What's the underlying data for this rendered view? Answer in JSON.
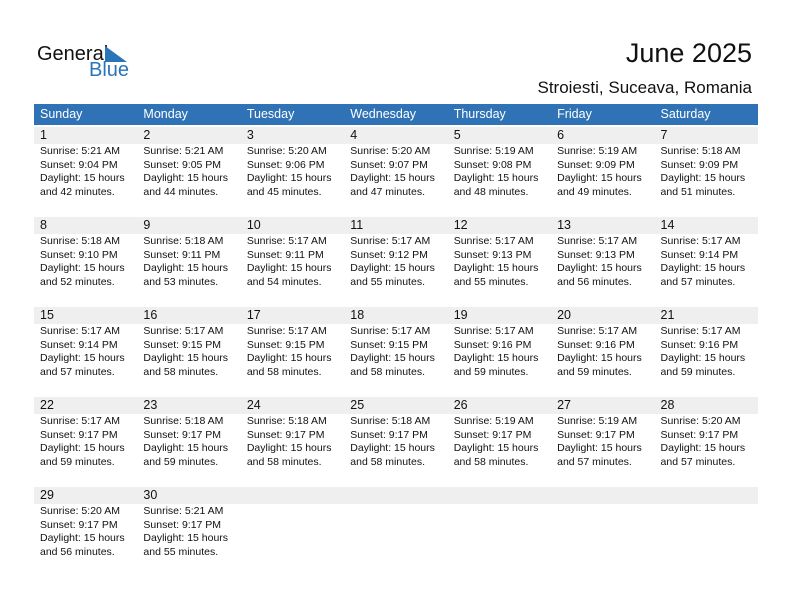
{
  "logo": {
    "general": "General",
    "blue": "Blue",
    "accent": "#2a75b8"
  },
  "title": "June 2025",
  "location": "Stroiesti, Suceava, Romania",
  "colors": {
    "header_bg": "#2f72b5",
    "date_bg": "#efefef"
  },
  "weekdays": [
    "Sunday",
    "Monday",
    "Tuesday",
    "Wednesday",
    "Thursday",
    "Friday",
    "Saturday"
  ],
  "days": [
    {
      "day": "1",
      "sunrise": "Sunrise: 5:21 AM",
      "sunset": "Sunset: 9:04 PM",
      "daylight": "Daylight: 15 hours",
      "minutes": "and 42 minutes."
    },
    {
      "day": "2",
      "sunrise": "Sunrise: 5:21 AM",
      "sunset": "Sunset: 9:05 PM",
      "daylight": "Daylight: 15 hours",
      "minutes": "and 44 minutes."
    },
    {
      "day": "3",
      "sunrise": "Sunrise: 5:20 AM",
      "sunset": "Sunset: 9:06 PM",
      "daylight": "Daylight: 15 hours",
      "minutes": "and 45 minutes."
    },
    {
      "day": "4",
      "sunrise": "Sunrise: 5:20 AM",
      "sunset": "Sunset: 9:07 PM",
      "daylight": "Daylight: 15 hours",
      "minutes": "and 47 minutes."
    },
    {
      "day": "5",
      "sunrise": "Sunrise: 5:19 AM",
      "sunset": "Sunset: 9:08 PM",
      "daylight": "Daylight: 15 hours",
      "minutes": "and 48 minutes."
    },
    {
      "day": "6",
      "sunrise": "Sunrise: 5:19 AM",
      "sunset": "Sunset: 9:09 PM",
      "daylight": "Daylight: 15 hours",
      "minutes": "and 49 minutes."
    },
    {
      "day": "7",
      "sunrise": "Sunrise: 5:18 AM",
      "sunset": "Sunset: 9:09 PM",
      "daylight": "Daylight: 15 hours",
      "minutes": "and 51 minutes."
    },
    {
      "day": "8",
      "sunrise": "Sunrise: 5:18 AM",
      "sunset": "Sunset: 9:10 PM",
      "daylight": "Daylight: 15 hours",
      "minutes": "and 52 minutes."
    },
    {
      "day": "9",
      "sunrise": "Sunrise: 5:18 AM",
      "sunset": "Sunset: 9:11 PM",
      "daylight": "Daylight: 15 hours",
      "minutes": "and 53 minutes."
    },
    {
      "day": "10",
      "sunrise": "Sunrise: 5:17 AM",
      "sunset": "Sunset: 9:11 PM",
      "daylight": "Daylight: 15 hours",
      "minutes": "and 54 minutes."
    },
    {
      "day": "11",
      "sunrise": "Sunrise: 5:17 AM",
      "sunset": "Sunset: 9:12 PM",
      "daylight": "Daylight: 15 hours",
      "minutes": "and 55 minutes."
    },
    {
      "day": "12",
      "sunrise": "Sunrise: 5:17 AM",
      "sunset": "Sunset: 9:13 PM",
      "daylight": "Daylight: 15 hours",
      "minutes": "and 55 minutes."
    },
    {
      "day": "13",
      "sunrise": "Sunrise: 5:17 AM",
      "sunset": "Sunset: 9:13 PM",
      "daylight": "Daylight: 15 hours",
      "minutes": "and 56 minutes."
    },
    {
      "day": "14",
      "sunrise": "Sunrise: 5:17 AM",
      "sunset": "Sunset: 9:14 PM",
      "daylight": "Daylight: 15 hours",
      "minutes": "and 57 minutes."
    },
    {
      "day": "15",
      "sunrise": "Sunrise: 5:17 AM",
      "sunset": "Sunset: 9:14 PM",
      "daylight": "Daylight: 15 hours",
      "minutes": "and 57 minutes."
    },
    {
      "day": "16",
      "sunrise": "Sunrise: 5:17 AM",
      "sunset": "Sunset: 9:15 PM",
      "daylight": "Daylight: 15 hours",
      "minutes": "and 58 minutes."
    },
    {
      "day": "17",
      "sunrise": "Sunrise: 5:17 AM",
      "sunset": "Sunset: 9:15 PM",
      "daylight": "Daylight: 15 hours",
      "minutes": "and 58 minutes."
    },
    {
      "day": "18",
      "sunrise": "Sunrise: 5:17 AM",
      "sunset": "Sunset: 9:15 PM",
      "daylight": "Daylight: 15 hours",
      "minutes": "and 58 minutes."
    },
    {
      "day": "19",
      "sunrise": "Sunrise: 5:17 AM",
      "sunset": "Sunset: 9:16 PM",
      "daylight": "Daylight: 15 hours",
      "minutes": "and 59 minutes."
    },
    {
      "day": "20",
      "sunrise": "Sunrise: 5:17 AM",
      "sunset": "Sunset: 9:16 PM",
      "daylight": "Daylight: 15 hours",
      "minutes": "and 59 minutes."
    },
    {
      "day": "21",
      "sunrise": "Sunrise: 5:17 AM",
      "sunset": "Sunset: 9:16 PM",
      "daylight": "Daylight: 15 hours",
      "minutes": "and 59 minutes."
    },
    {
      "day": "22",
      "sunrise": "Sunrise: 5:17 AM",
      "sunset": "Sunset: 9:17 PM",
      "daylight": "Daylight: 15 hours",
      "minutes": "and 59 minutes."
    },
    {
      "day": "23",
      "sunrise": "Sunrise: 5:18 AM",
      "sunset": "Sunset: 9:17 PM",
      "daylight": "Daylight: 15 hours",
      "minutes": "and 59 minutes."
    },
    {
      "day": "24",
      "sunrise": "Sunrise: 5:18 AM",
      "sunset": "Sunset: 9:17 PM",
      "daylight": "Daylight: 15 hours",
      "minutes": "and 58 minutes."
    },
    {
      "day": "25",
      "sunrise": "Sunrise: 5:18 AM",
      "sunset": "Sunset: 9:17 PM",
      "daylight": "Daylight: 15 hours",
      "minutes": "and 58 minutes."
    },
    {
      "day": "26",
      "sunrise": "Sunrise: 5:19 AM",
      "sunset": "Sunset: 9:17 PM",
      "daylight": "Daylight: 15 hours",
      "minutes": "and 58 minutes."
    },
    {
      "day": "27",
      "sunrise": "Sunrise: 5:19 AM",
      "sunset": "Sunset: 9:17 PM",
      "daylight": "Daylight: 15 hours",
      "minutes": "and 57 minutes."
    },
    {
      "day": "28",
      "sunrise": "Sunrise: 5:20 AM",
      "sunset": "Sunset: 9:17 PM",
      "daylight": "Daylight: 15 hours",
      "minutes": "and 57 minutes."
    },
    {
      "day": "29",
      "sunrise": "Sunrise: 5:20 AM",
      "sunset": "Sunset: 9:17 PM",
      "daylight": "Daylight: 15 hours",
      "minutes": "and 56 minutes."
    },
    {
      "day": "30",
      "sunrise": "Sunrise: 5:21 AM",
      "sunset": "Sunset: 9:17 PM",
      "daylight": "Daylight: 15 hours",
      "minutes": "and 55 minutes."
    }
  ]
}
